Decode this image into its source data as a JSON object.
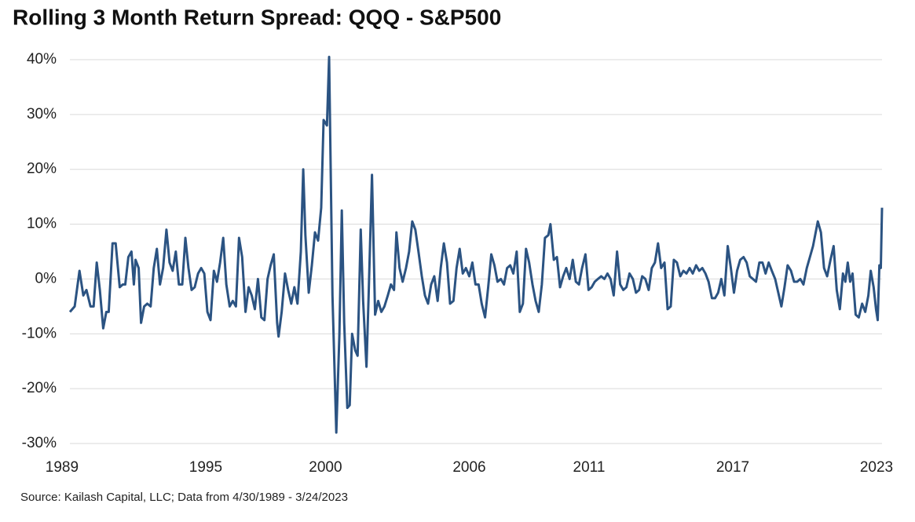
{
  "chart_data": {
    "type": "line",
    "title": "Rolling 3 Month Return Spread: QQQ - S&P500",
    "source": "Source: Kailash Capital, LLC; Data from 4/30/1989 - 3/24/2023",
    "xlim": [
      1989.33,
      2023.23
    ],
    "xticks": [
      1989,
      1995,
      2000,
      2006,
      2011,
      2017,
      2023
    ],
    "ylim": [
      -30,
      40
    ],
    "yticks": [
      {
        "value": -30,
        "label": "-30%"
      },
      {
        "value": -20,
        "label": "-20%"
      },
      {
        "value": -10,
        "label": "-10%"
      },
      {
        "value": 0,
        "label": "0%"
      },
      {
        "value": 10,
        "label": "10%"
      },
      {
        "value": 20,
        "label": "20%"
      },
      {
        "value": 30,
        "label": "30%"
      },
      {
        "value": 40,
        "label": "40%"
      }
    ],
    "grid": true,
    "series": [
      {
        "color": "#2b5382",
        "x": [
          1989.33,
          1989.53,
          1989.73,
          1989.89,
          1990.02,
          1990.19,
          1990.32,
          1990.45,
          1990.58,
          1990.72,
          1990.85,
          1990.95,
          1991.11,
          1991.24,
          1991.41,
          1991.54,
          1991.64,
          1991.77,
          1991.9,
          1992.0,
          1992.07,
          1992.2,
          1992.3,
          1992.43,
          1992.56,
          1992.7,
          1992.83,
          1992.96,
          1993.09,
          1993.22,
          1993.36,
          1993.49,
          1993.62,
          1993.75,
          1993.88,
          1994.02,
          1994.15,
          1994.28,
          1994.41,
          1994.54,
          1994.68,
          1994.81,
          1994.94,
          1995.07,
          1995.2,
          1995.34,
          1995.47,
          1995.6,
          1995.73,
          1995.86,
          1996.0,
          1996.13,
          1996.26,
          1996.39,
          1996.52,
          1996.66,
          1996.79,
          1996.92,
          1997.05,
          1997.18,
          1997.32,
          1997.45,
          1997.58,
          1997.71,
          1997.84,
          1997.98,
          1998.04,
          1998.17,
          1998.31,
          1998.44,
          1998.57,
          1998.7,
          1998.83,
          1998.97,
          1999.07,
          1999.16,
          1999.3,
          1999.43,
          1999.56,
          1999.69,
          1999.82,
          1999.92,
          2000.06,
          2000.15,
          2000.29,
          2000.45,
          2000.58,
          2000.68,
          2000.78,
          2000.91,
          2001.01,
          2001.11,
          2001.24,
          2001.34,
          2001.47,
          2001.57,
          2001.71,
          2001.8,
          2001.94,
          2002.07,
          2002.2,
          2002.33,
          2002.46,
          2002.6,
          2002.73,
          2002.86,
          2002.96,
          2003.09,
          2003.22,
          2003.36,
          2003.49,
          2003.62,
          2003.75,
          2003.88,
          2004.02,
          2004.15,
          2004.28,
          2004.41,
          2004.54,
          2004.68,
          2004.81,
          2004.94,
          2005.07,
          2005.2,
          2005.34,
          2005.47,
          2005.6,
          2005.73,
          2005.86,
          2006.0,
          2006.13,
          2006.26,
          2006.39,
          2006.52,
          2006.66,
          2006.79,
          2006.92,
          2007.05,
          2007.18,
          2007.32,
          2007.45,
          2007.58,
          2007.71,
          2007.84,
          2007.98,
          2008.11,
          2008.24,
          2008.37,
          2008.5,
          2008.64,
          2008.77,
          2008.9,
          2009.03,
          2009.16,
          2009.3,
          2009.39,
          2009.53,
          2009.66,
          2009.79,
          2009.92,
          2010.05,
          2010.19,
          2010.32,
          2010.45,
          2010.58,
          2010.71,
          2010.85,
          2010.98,
          2011.11,
          2011.24,
          2011.37,
          2011.51,
          2011.64,
          2011.77,
          2011.9,
          2012.03,
          2012.17,
          2012.3,
          2012.43,
          2012.56,
          2012.69,
          2012.83,
          2012.96,
          2013.09,
          2013.22,
          2013.35,
          2013.49,
          2013.62,
          2013.75,
          2013.88,
          2014.01,
          2014.15,
          2014.28,
          2014.41,
          2014.54,
          2014.67,
          2014.81,
          2014.94,
          2015.07,
          2015.2,
          2015.33,
          2015.47,
          2015.6,
          2015.73,
          2015.86,
          2015.99,
          2016.13,
          2016.26,
          2016.39,
          2016.52,
          2016.65,
          2016.79,
          2016.92,
          2017.05,
          2017.18,
          2017.31,
          2017.45,
          2017.58,
          2017.71,
          2017.84,
          2017.97,
          2018.11,
          2018.24,
          2018.37,
          2018.5,
          2018.63,
          2018.77,
          2018.9,
          2019.03,
          2019.16,
          2019.29,
          2019.43,
          2019.56,
          2019.69,
          2019.82,
          2019.95,
          2020.09,
          2020.22,
          2020.35,
          2020.55,
          2020.68,
          2020.81,
          2020.94,
          2021.08,
          2021.21,
          2021.34,
          2021.47,
          2021.6,
          2021.7,
          2021.8,
          2021.9,
          2022.0,
          2022.13,
          2022.26,
          2022.4,
          2022.53,
          2022.66,
          2022.76,
          2022.88,
          2022.98,
          2023.05,
          2023.12,
          2023.18,
          2023.23
        ],
        "values": [
          -6,
          -5,
          1.5,
          -3,
          -2,
          -5,
          -5,
          3,
          -2,
          -9,
          -6,
          -6,
          6.5,
          6.5,
          -1.5,
          -1,
          -1,
          4,
          5,
          -1,
          3.5,
          2,
          -8,
          -5,
          -4.5,
          -5,
          2,
          5.5,
          -1,
          2,
          9,
          3,
          1.5,
          5,
          -1,
          -1,
          7.5,
          2,
          -2,
          -1.5,
          1,
          2,
          1,
          -6,
          -7.5,
          1.5,
          -0.5,
          3,
          7.5,
          -1,
          -5,
          -4,
          -5,
          7.5,
          4,
          -6,
          -1.5,
          -3,
          -5.5,
          0,
          -7,
          -7.5,
          0,
          2.5,
          4.5,
          -8,
          -10.5,
          -6,
          1,
          -2,
          -4.5,
          -1.5,
          -4.5,
          5,
          20,
          8,
          -2.5,
          2.5,
          8.5,
          7,
          13,
          29,
          28,
          40.5,
          -3,
          -28,
          -10,
          12.5,
          -8,
          -23.5,
          -23,
          -10,
          -13,
          -14,
          9,
          -4,
          -16,
          -3,
          19,
          -6.5,
          -4,
          -6,
          -5,
          -3,
          -1,
          -2,
          8.5,
          2,
          -0.5,
          2,
          5,
          10.5,
          9,
          5,
          0.5,
          -3,
          -4.5,
          -1,
          0.5,
          -4,
          2,
          6.5,
          3,
          -4.5,
          -4,
          2,
          5.5,
          1,
          2,
          0.5,
          3,
          -1,
          -1,
          -4.5,
          -7,
          -1.5,
          4.5,
          2.5,
          -0.5,
          0,
          -1,
          2,
          2.5,
          1,
          5,
          -6,
          -4.5,
          5.5,
          3,
          -1,
          -4,
          -6,
          -1,
          7.5,
          8,
          10,
          3.5,
          4,
          -1.5,
          0.5,
          2,
          0,
          3.5,
          -0.5,
          -1,
          2,
          4.5,
          -2,
          -1.5,
          -0.5,
          0,
          0.5,
          0,
          1,
          0,
          -3,
          5,
          -1,
          -2,
          -1.5,
          1,
          0,
          -2.5,
          -2,
          0.5,
          0,
          -2,
          2,
          3,
          6.5,
          2,
          3,
          -5.5,
          -5,
          3.5,
          3,
          0.5,
          1.5,
          1,
          2,
          1,
          2.5,
          1.5,
          2,
          1,
          -0.5,
          -3.5,
          -3.5,
          -2.5,
          0,
          -3,
          6,
          2,
          -2.5,
          1.5,
          3.5,
          4,
          3,
          0.5,
          0,
          -0.5,
          3,
          3,
          1,
          3,
          1.5,
          0,
          -2.5,
          -5,
          -1.5,
          2.5,
          1.5,
          -0.5,
          -0.5,
          0,
          -1,
          2,
          4,
          6,
          10.5,
          8.5,
          2,
          0.5,
          3.5,
          6,
          -2,
          -5.5,
          1,
          -0.5,
          3,
          -0.5,
          1,
          -6.5,
          -7,
          -4.5,
          -6,
          -3,
          1.5,
          -1.5,
          -5.5,
          -7.5,
          2.5,
          2,
          13
        ]
      }
    ]
  }
}
